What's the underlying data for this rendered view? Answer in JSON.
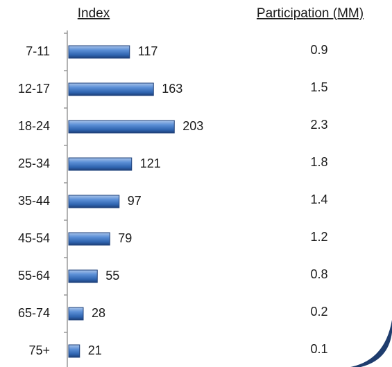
{
  "chart_data": {
    "type": "bar",
    "categories": [
      "7-11",
      "12-17",
      "18-24",
      "25-34",
      "35-44",
      "45-54",
      "55-64",
      "65-74",
      "75+"
    ],
    "series": [
      {
        "name": "Index",
        "color": "#4f81bd",
        "values": [
          117,
          163,
          203,
          121,
          97,
          79,
          55,
          28,
          21
        ]
      },
      {
        "name": "Participation (MM)",
        "values": [
          0.9,
          1.5,
          2.3,
          1.8,
          1.4,
          1.2,
          0.8,
          0.2,
          0.1
        ]
      }
    ]
  }
}
